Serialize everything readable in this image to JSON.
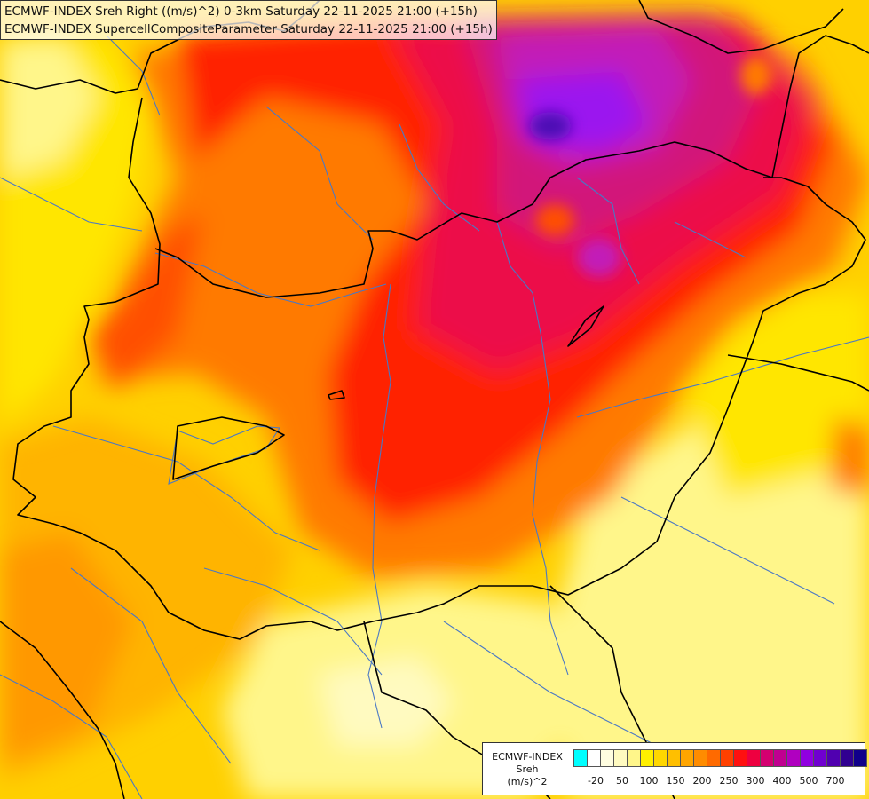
{
  "titles": {
    "line1": "ECMWF-INDEX Sreh Right ((m/s)^2) 0-3km Saturday 22-11-2025 21:00 (+15h)",
    "line2": "ECMWF-INDEX SupercellCompositeParameter Saturday 22-11-2025 21:00 (+15h)"
  },
  "legend": {
    "line1": "ECMWF-INDEX",
    "line2": "Sreh",
    "line3": "(m/s)^2",
    "colors": [
      "#00ffff",
      "#ffffff",
      "#fffde0",
      "#fffac0",
      "#fff68a",
      "#fff000",
      "#ffd700",
      "#ffbf00",
      "#ffa500",
      "#ff8c00",
      "#ff6a00",
      "#ff4000",
      "#ff1010",
      "#ee0040",
      "#d40070",
      "#c00090",
      "#b000c0",
      "#9000e0",
      "#7000d0",
      "#5000b0",
      "#300090",
      "#10008a"
    ],
    "ticks": [
      "-20",
      "50",
      "100",
      "150",
      "200",
      "250",
      "300",
      "400",
      "500",
      "700"
    ]
  },
  "map": {
    "fill_colors": {
      "pale": "#fffac0",
      "light_yellow": "#fff68a",
      "yellow": "#ffe600",
      "gold": "#ffd000",
      "amber": "#ffb400",
      "orange": "#ff9800",
      "dark_orange": "#ff7a00",
      "red_orange": "#ff5000",
      "red": "#ff2200",
      "crimson": "#ec0a4a",
      "magenta": "#d2157a",
      "purple": "#c21ab8",
      "violet": "#9b18ef",
      "indigo": "#4c08b4",
      "border_line": "#000000",
      "river_line": "#4a78c4"
    }
  }
}
